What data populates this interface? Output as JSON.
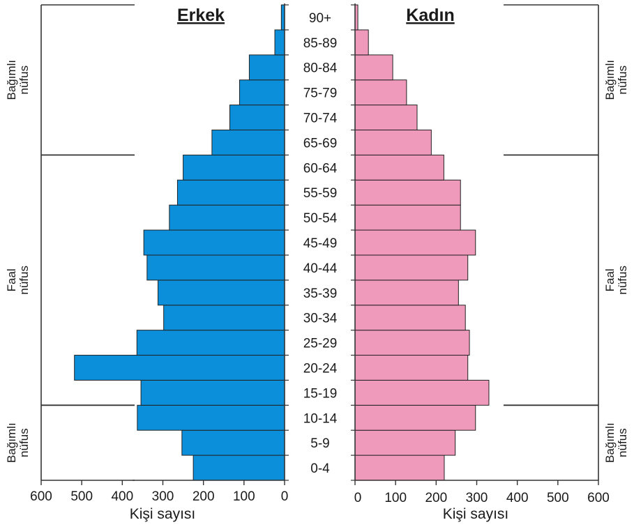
{
  "chart_data": {
    "type": "bar",
    "orientation": "horizontal-population-pyramid",
    "age_groups": [
      "0-4",
      "5-9",
      "10-14",
      "15-19",
      "20-24",
      "25-29",
      "30-34",
      "35-39",
      "40-44",
      "45-49",
      "50-54",
      "55-59",
      "60-64",
      "65-69",
      "70-74",
      "75-79",
      "80-84",
      "85-89",
      "90+"
    ],
    "series": [
      {
        "name": "Erkek",
        "side": "left",
        "color": "#0b8fda",
        "values": [
          225,
          253,
          363,
          354,
          518,
          364,
          298,
          312,
          339,
          347,
          284,
          264,
          250,
          179,
          135,
          111,
          87,
          24,
          8
        ]
      },
      {
        "name": "Kadın",
        "side": "right",
        "color": "#f09abb",
        "values": [
          220,
          247,
          297,
          330,
          278,
          282,
          272,
          255,
          278,
          297,
          260,
          260,
          219,
          188,
          153,
          127,
          93,
          33,
          7
        ]
      }
    ],
    "left_axis": {
      "ticks": [
        "600",
        "500",
        "400",
        "300",
        "200",
        "100",
        "0"
      ],
      "range": [
        600,
        0
      ],
      "xlabel": "Kişi sayısı"
    },
    "right_axis": {
      "ticks": [
        "0",
        "100",
        "200",
        "300",
        "400",
        "500",
        "600"
      ],
      "range": [
        0,
        600
      ],
      "xlabel": "Kişi sayısı"
    },
    "groups": [
      {
        "label_line1": "Bağımlı",
        "label_line2": "nüfus",
        "from": "65-69",
        "to": "90+"
      },
      {
        "label_line1": "Faal",
        "label_line2": "nüfus",
        "from": "15-19",
        "to": "60-64"
      },
      {
        "label_line1": "Bağımlı",
        "label_line2": "nüfus",
        "from": "0-4",
        "to": "10-14"
      }
    ],
    "grid": false
  }
}
